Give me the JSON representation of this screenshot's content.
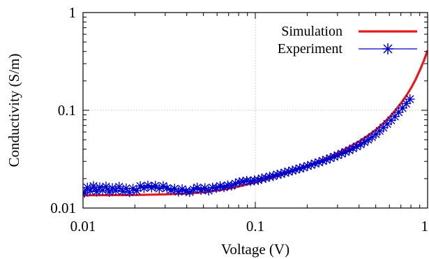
{
  "chart_data": {
    "type": "line",
    "xlabel": "Voltage (V)",
    "ylabel": "Conductivity (S/m)",
    "xscale": "log",
    "yscale": "log",
    "xlim": [
      0.01,
      1
    ],
    "ylim": [
      0.01,
      1
    ],
    "xticks": [
      {
        "value": 0.01,
        "label": "0.01"
      },
      {
        "value": 0.1,
        "label": "0.1"
      },
      {
        "value": 1,
        "label": "1"
      }
    ],
    "yticks": [
      {
        "value": 0.01,
        "label": "0.01"
      },
      {
        "value": 0.1,
        "label": "0.1"
      },
      {
        "value": 1,
        "label": "1"
      }
    ],
    "grid": true,
    "legend_position": "top-right",
    "series": [
      {
        "name": "Simulation",
        "style": "line",
        "color": "#e41a1c",
        "x": [
          0.01,
          0.02,
          0.03,
          0.04,
          0.05,
          0.06,
          0.07,
          0.08,
          0.1,
          0.12,
          0.15,
          0.2,
          0.25,
          0.3,
          0.35,
          0.4,
          0.45,
          0.5,
          0.55,
          0.6,
          0.65,
          0.7,
          0.75,
          0.8,
          0.85,
          0.9,
          0.95,
          1.0
        ],
        "y": [
          0.0135,
          0.0136,
          0.0138,
          0.0141,
          0.0145,
          0.0151,
          0.0158,
          0.0166,
          0.0183,
          0.02,
          0.0226,
          0.027,
          0.0315,
          0.0365,
          0.042,
          0.048,
          0.055,
          0.063,
          0.073,
          0.085,
          0.1,
          0.118,
          0.14,
          0.168,
          0.205,
          0.255,
          0.32,
          0.41
        ]
      },
      {
        "name": "Experiment",
        "style": "line-markers",
        "marker": "star",
        "color": "#0000cc",
        "x": [
          0.0102,
          0.0106,
          0.011,
          0.0115,
          0.012,
          0.0125,
          0.013,
          0.0136,
          0.0142,
          0.0148,
          0.0155,
          0.0162,
          0.017,
          0.0178,
          0.0186,
          0.0195,
          0.0205,
          0.0215,
          0.0226,
          0.0238,
          0.025,
          0.0263,
          0.0277,
          0.0292,
          0.0307,
          0.0324,
          0.034,
          0.0358,
          0.0376,
          0.0396,
          0.0416,
          0.0438,
          0.046,
          0.0484,
          0.051,
          0.0536,
          0.0565,
          0.0594,
          0.0625,
          0.0658,
          0.0692,
          0.0728,
          0.0766,
          0.0806,
          0.0848,
          0.0892,
          0.0939,
          0.0988,
          0.104,
          0.109,
          0.115,
          0.121,
          0.127,
          0.134,
          0.141,
          0.148,
          0.156,
          0.164,
          0.172,
          0.181,
          0.191,
          0.201,
          0.211,
          0.222,
          0.234,
          0.246,
          0.259,
          0.272,
          0.287,
          0.301,
          0.317,
          0.334,
          0.351,
          0.369,
          0.388,
          0.409,
          0.43,
          0.452,
          0.476,
          0.501,
          0.527,
          0.554,
          0.583,
          0.614,
          0.646,
          0.679,
          0.715,
          0.752,
          0.79
        ],
        "y": [
          0.0143,
          0.0162,
          0.015,
          0.0168,
          0.0147,
          0.0163,
          0.0152,
          0.0166,
          0.0146,
          0.016,
          0.0151,
          0.0165,
          0.0148,
          0.0159,
          0.0145,
          0.0158,
          0.015,
          0.0168,
          0.016,
          0.017,
          0.0162,
          0.0169,
          0.0158,
          0.0168,
          0.016,
          0.0152,
          0.0158,
          0.0147,
          0.0156,
          0.0149,
          0.0146,
          0.0155,
          0.0162,
          0.0153,
          0.016,
          0.0151,
          0.0162,
          0.016,
          0.0168,
          0.0163,
          0.0171,
          0.0169,
          0.0178,
          0.0184,
          0.0186,
          0.019,
          0.0188,
          0.0192,
          0.0193,
          0.0201,
          0.0203,
          0.021,
          0.0212,
          0.022,
          0.0223,
          0.0231,
          0.0235,
          0.0242,
          0.0247,
          0.0255,
          0.026,
          0.027,
          0.0276,
          0.0286,
          0.0293,
          0.0304,
          0.0312,
          0.0324,
          0.0335,
          0.0347,
          0.036,
          0.0375,
          0.039,
          0.0408,
          0.0427,
          0.0448,
          0.0473,
          0.05,
          0.0532,
          0.057,
          0.0615,
          0.0665,
          0.0725,
          0.079,
          0.0865,
          0.0955,
          0.1055,
          0.117,
          0.13
        ]
      }
    ]
  }
}
